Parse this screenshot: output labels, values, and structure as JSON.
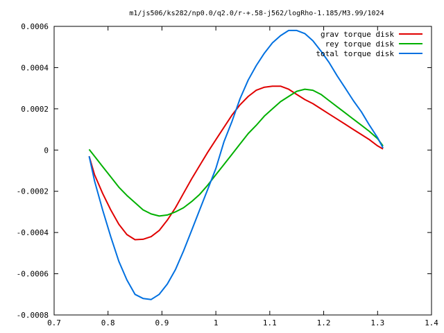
{
  "chart_data": {
    "type": "line",
    "title": "m1/js506/ks282/np0.0/q2.0/r-+.58-j562/logRho-1.185/M3.99/1024",
    "xlabel": "",
    "ylabel": "",
    "xlim": [
      0.7,
      1.4
    ],
    "ylim": [
      -0.0008,
      0.0006
    ],
    "x_ticks": [
      0.7,
      0.8,
      0.9,
      1.0,
      1.1,
      1.2,
      1.3,
      1.4
    ],
    "x_tick_labels": [
      "0.7",
      "0.8",
      "0.9",
      "1",
      "1.1",
      "1.2",
      "1.3",
      "1.4"
    ],
    "y_ticks": [
      0.0006,
      0.0004,
      0.0002,
      0,
      -0.0002,
      -0.0004,
      -0.0006,
      -0.0008
    ],
    "y_tick_labels": [
      "0.0006",
      "0.0004",
      "0.0002",
      "0",
      "-0.0002",
      "-0.0004",
      "-0.0006",
      "-0.0008"
    ],
    "grid": false,
    "legend_position": "top-right",
    "series": [
      {
        "name": "grav torque disk",
        "color": "#e00000",
        "points": [
          [
            0.765,
            -3e-05
          ],
          [
            0.775,
            -0.00012
          ],
          [
            0.79,
            -0.00021
          ],
          [
            0.805,
            -0.00029
          ],
          [
            0.82,
            -0.00036
          ],
          [
            0.835,
            -0.00041
          ],
          [
            0.85,
            -0.000435
          ],
          [
            0.865,
            -0.000433
          ],
          [
            0.88,
            -0.00042
          ],
          [
            0.895,
            -0.00039
          ],
          [
            0.91,
            -0.00034
          ],
          [
            0.925,
            -0.00028
          ],
          [
            0.94,
            -0.00021
          ],
          [
            0.955,
            -0.00014
          ],
          [
            0.97,
            -7.5e-05
          ],
          [
            0.985,
            -1e-05
          ],
          [
            1.0,
            5e-05
          ],
          [
            1.015,
            0.00011
          ],
          [
            1.03,
            0.00017
          ],
          [
            1.045,
            0.00022
          ],
          [
            1.06,
            0.00026
          ],
          [
            1.075,
            0.00029
          ],
          [
            1.09,
            0.000305
          ],
          [
            1.105,
            0.00031
          ],
          [
            1.12,
            0.00031
          ],
          [
            1.135,
            0.000295
          ],
          [
            1.15,
            0.00027
          ],
          [
            1.165,
            0.000245
          ],
          [
            1.18,
            0.000225
          ],
          [
            1.195,
            0.0002
          ],
          [
            1.21,
            0.000175
          ],
          [
            1.225,
            0.00015
          ],
          [
            1.24,
            0.000125
          ],
          [
            1.255,
            0.0001
          ],
          [
            1.27,
            7.5e-05
          ],
          [
            1.285,
            5e-05
          ],
          [
            1.3,
            2e-05
          ],
          [
            1.31,
            5e-06
          ]
        ]
      },
      {
        "name": "rey torque disk",
        "color": "#00b000",
        "points": [
          [
            0.765,
            3e-06
          ],
          [
            0.775,
            -3e-05
          ],
          [
            0.79,
            -8e-05
          ],
          [
            0.805,
            -0.00013
          ],
          [
            0.82,
            -0.00018
          ],
          [
            0.835,
            -0.00022
          ],
          [
            0.85,
            -0.000255
          ],
          [
            0.865,
            -0.00029
          ],
          [
            0.88,
            -0.00031
          ],
          [
            0.895,
            -0.00032
          ],
          [
            0.91,
            -0.000315
          ],
          [
            0.925,
            -0.0003
          ],
          [
            0.94,
            -0.00028
          ],
          [
            0.955,
            -0.00025
          ],
          [
            0.97,
            -0.000215
          ],
          [
            0.985,
            -0.00017
          ],
          [
            1.0,
            -0.00012
          ],
          [
            1.015,
            -7e-05
          ],
          [
            1.03,
            -2e-05
          ],
          [
            1.045,
            3e-05
          ],
          [
            1.06,
            8e-05
          ],
          [
            1.075,
            0.00012
          ],
          [
            1.09,
            0.000165
          ],
          [
            1.105,
            0.0002
          ],
          [
            1.12,
            0.000235
          ],
          [
            1.135,
            0.00026
          ],
          [
            1.15,
            0.000285
          ],
          [
            1.165,
            0.000295
          ],
          [
            1.18,
            0.00029
          ],
          [
            1.195,
            0.00027
          ],
          [
            1.21,
            0.00024
          ],
          [
            1.225,
            0.00021
          ],
          [
            1.24,
            0.00018
          ],
          [
            1.255,
            0.00015
          ],
          [
            1.27,
            0.00012
          ],
          [
            1.285,
            9e-05
          ],
          [
            1.3,
            5.5e-05
          ],
          [
            1.31,
            2e-05
          ]
        ]
      },
      {
        "name": "total torque disk",
        "color": "#0070e0",
        "points": [
          [
            0.765,
            -3e-05
          ],
          [
            0.775,
            -0.00015
          ],
          [
            0.79,
            -0.00029
          ],
          [
            0.805,
            -0.00042
          ],
          [
            0.82,
            -0.00054
          ],
          [
            0.835,
            -0.00063
          ],
          [
            0.85,
            -0.0007
          ],
          [
            0.865,
            -0.00072
          ],
          [
            0.88,
            -0.000725
          ],
          [
            0.895,
            -0.0007
          ],
          [
            0.91,
            -0.00065
          ],
          [
            0.925,
            -0.00058
          ],
          [
            0.94,
            -0.00049
          ],
          [
            0.955,
            -0.00039
          ],
          [
            0.97,
            -0.00029
          ],
          [
            0.985,
            -0.00019
          ],
          [
            1.0,
            -9e-05
          ],
          [
            1.015,
            4e-05
          ],
          [
            1.03,
            0.00014
          ],
          [
            1.045,
            0.00025
          ],
          [
            1.06,
            0.00034
          ],
          [
            1.075,
            0.00041
          ],
          [
            1.09,
            0.00047
          ],
          [
            1.105,
            0.00052
          ],
          [
            1.12,
            0.000555
          ],
          [
            1.135,
            0.00058
          ],
          [
            1.15,
            0.00058
          ],
          [
            1.165,
            0.000565
          ],
          [
            1.18,
            0.00053
          ],
          [
            1.195,
            0.00048
          ],
          [
            1.21,
            0.000425
          ],
          [
            1.225,
            0.00036
          ],
          [
            1.24,
            0.0003
          ],
          [
            1.255,
            0.00024
          ],
          [
            1.27,
            0.000185
          ],
          [
            1.285,
            0.00012
          ],
          [
            1.3,
            6e-05
          ],
          [
            1.31,
            1e-05
          ]
        ]
      }
    ]
  }
}
